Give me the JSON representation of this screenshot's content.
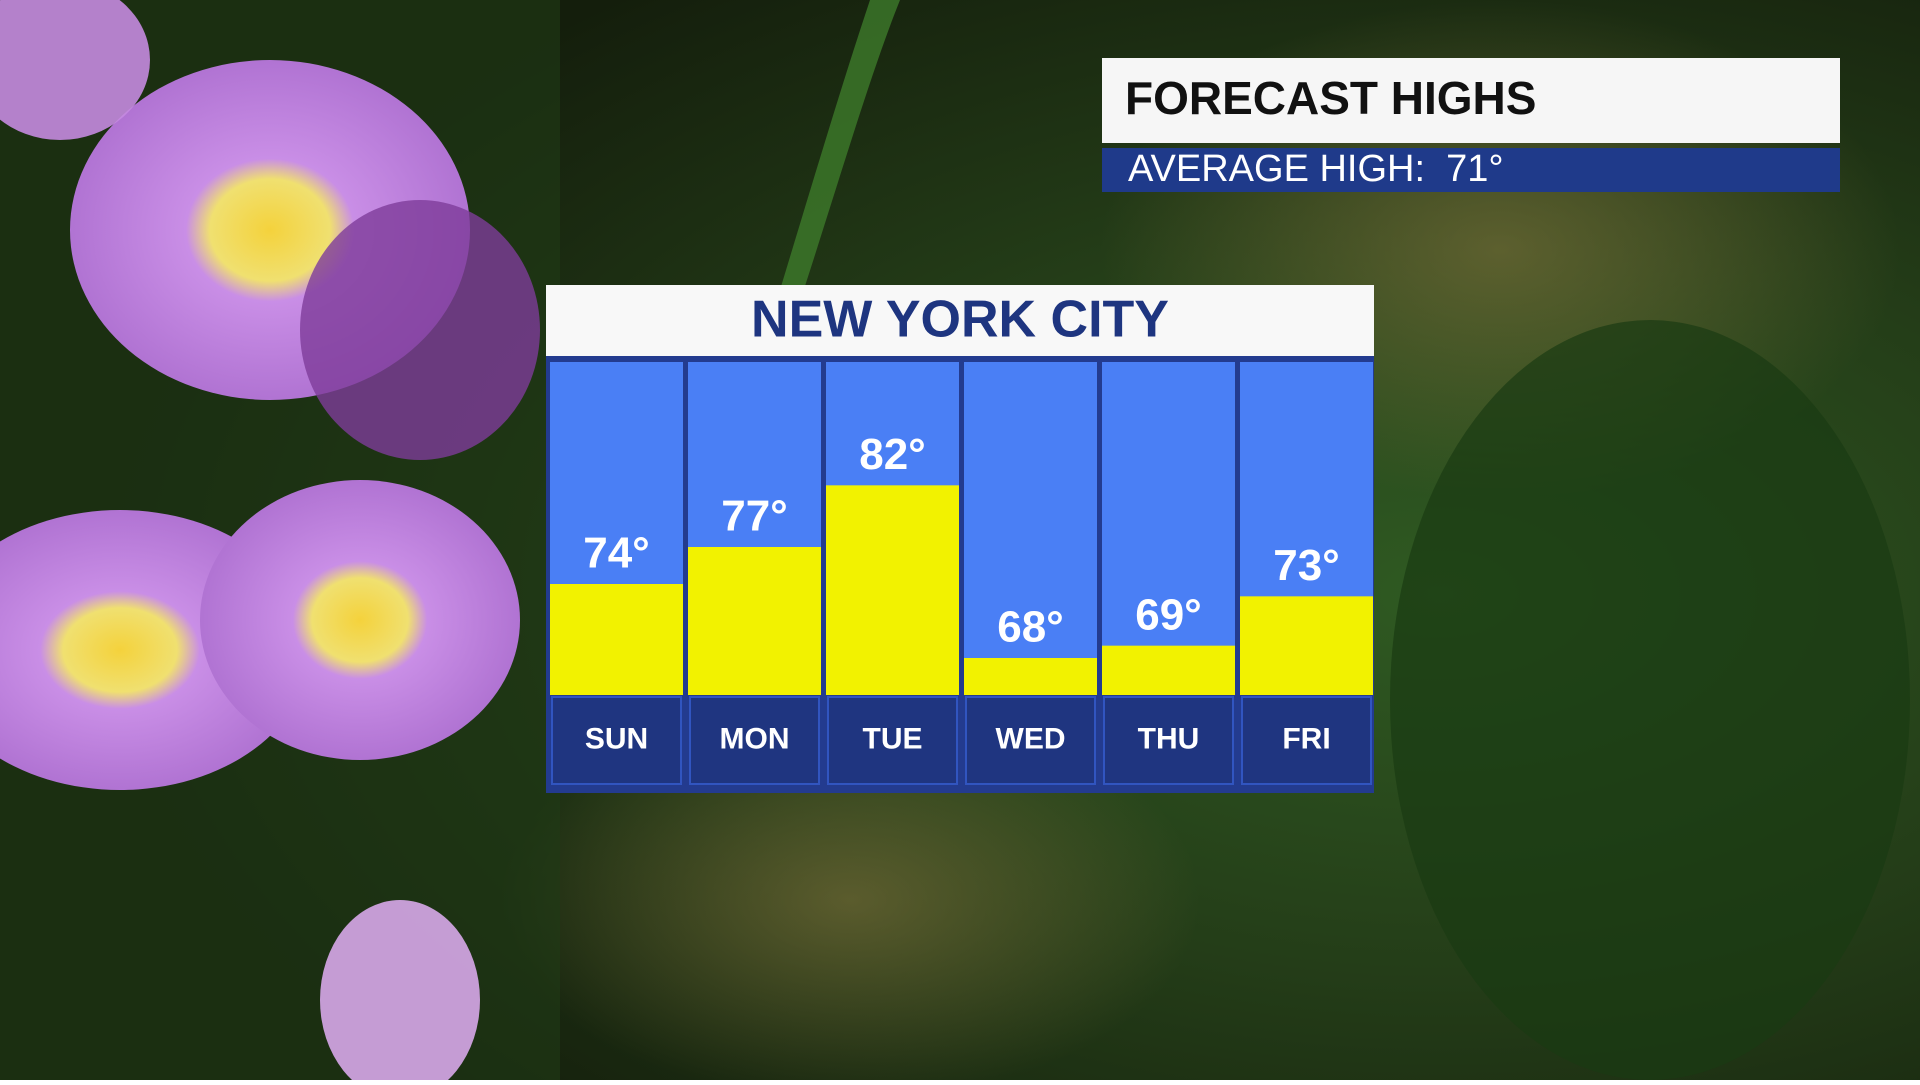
{
  "chart_data": {
    "type": "bar",
    "title": "NEW YORK CITY",
    "header": "FORECAST HIGHS",
    "subtitle": "AVERAGE HIGH:  71°",
    "categories": [
      "SUN",
      "MON",
      "TUE",
      "WED",
      "THU",
      "FRI"
    ],
    "values": [
      74,
      77,
      82,
      68,
      69,
      73
    ],
    "value_labels": [
      "74°",
      "77°",
      "82°",
      "68°",
      "69°",
      "73°"
    ],
    "color": "#f2f200",
    "ylim": [
      65,
      92
    ]
  }
}
